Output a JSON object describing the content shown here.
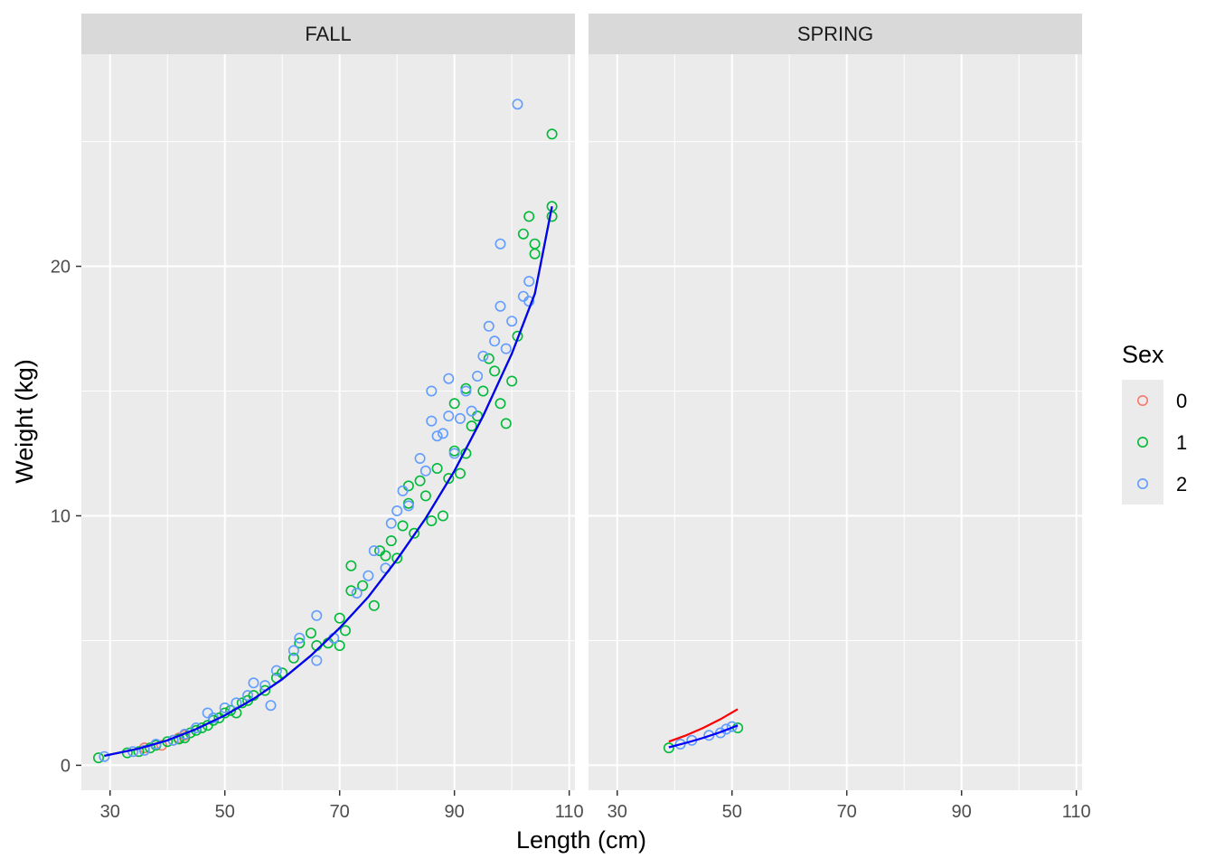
{
  "chart_data": {
    "type": "scatter",
    "xlabel": "Length (cm)",
    "ylabel": "Weight (kg)",
    "xlim": [
      25,
      111
    ],
    "ylim": [
      -1,
      28.5
    ],
    "x_ticks": [
      30,
      50,
      70,
      90,
      110
    ],
    "y_ticks": [
      0,
      10,
      20
    ],
    "grid": true,
    "legend": {
      "title": "Sex",
      "position": "right",
      "entries": [
        {
          "label": "0",
          "color": "#F8766D"
        },
        {
          "label": "1",
          "color": "#00BA38"
        },
        {
          "label": "2",
          "color": "#619CFF"
        }
      ]
    },
    "facets": [
      {
        "label": "FALL",
        "series": [
          {
            "name": "0",
            "color": "#F8766D",
            "points": [
              [
                36,
                0.7
              ],
              [
                39,
                0.8
              ],
              [
                41,
                1.0
              ],
              [
                42,
                1.1
              ],
              [
                43,
                1.2
              ]
            ]
          },
          {
            "name": "1",
            "color": "#00BA38",
            "points": [
              [
                28,
                0.3
              ],
              [
                33,
                0.5
              ],
              [
                35,
                0.55
              ],
              [
                37,
                0.7
              ],
              [
                38,
                0.8
              ],
              [
                40,
                0.95
              ],
              [
                42,
                1.05
              ],
              [
                43,
                1.1
              ],
              [
                44,
                1.3
              ],
              [
                45,
                1.4
              ],
              [
                46,
                1.5
              ],
              [
                47,
                1.6
              ],
              [
                48,
                1.8
              ],
              [
                49,
                1.9
              ],
              [
                50,
                2.1
              ],
              [
                51,
                2.2
              ],
              [
                52,
                2.1
              ],
              [
                53,
                2.5
              ],
              [
                54,
                2.6
              ],
              [
                55,
                2.8
              ],
              [
                57,
                3.0
              ],
              [
                59,
                3.5
              ],
              [
                60,
                3.7
              ],
              [
                62,
                4.3
              ],
              [
                63,
                4.9
              ],
              [
                65,
                5.3
              ],
              [
                66,
                4.8
              ],
              [
                68,
                4.9
              ],
              [
                70,
                4.8
              ],
              [
                70,
                5.9
              ],
              [
                71,
                5.4
              ],
              [
                72,
                7.0
              ],
              [
                72,
                8.0
              ],
              [
                74,
                7.2
              ],
              [
                76,
                6.4
              ],
              [
                77,
                8.6
              ],
              [
                78,
                8.4
              ],
              [
                79,
                9.0
              ],
              [
                80,
                8.3
              ],
              [
                81,
                9.6
              ],
              [
                82,
                10.5
              ],
              [
                82,
                11.2
              ],
              [
                83,
                9.3
              ],
              [
                84,
                11.4
              ],
              [
                85,
                10.8
              ],
              [
                86,
                9.8
              ],
              [
                87,
                11.9
              ],
              [
                88,
                10.0
              ],
              [
                89,
                11.5
              ],
              [
                90,
                12.6
              ],
              [
                90,
                14.5
              ],
              [
                91,
                11.7
              ],
              [
                92,
                12.5
              ],
              [
                92,
                15.1
              ],
              [
                93,
                13.6
              ],
              [
                94,
                14.0
              ],
              [
                95,
                15.0
              ],
              [
                96,
                16.3
              ],
              [
                97,
                15.8
              ],
              [
                98,
                14.5
              ],
              [
                99,
                13.7
              ],
              [
                100,
                15.4
              ],
              [
                101,
                17.2
              ],
              [
                102,
                21.3
              ],
              [
                103,
                22.0
              ],
              [
                104,
                20.5
              ],
              [
                104,
                20.9
              ],
              [
                107,
                22.0
              ],
              [
                107,
                22.4
              ],
              [
                107,
                25.3
              ]
            ]
          },
          {
            "name": "2",
            "color": "#619CFF",
            "points": [
              [
                29,
                0.35
              ],
              [
                34,
                0.55
              ],
              [
                36,
                0.6
              ],
              [
                38,
                0.85
              ],
              [
                41,
                1.0
              ],
              [
                43,
                1.25
              ],
              [
                45,
                1.5
              ],
              [
                47,
                2.1
              ],
              [
                48,
                1.9
              ],
              [
                50,
                2.3
              ],
              [
                52,
                2.5
              ],
              [
                54,
                2.8
              ],
              [
                55,
                3.3
              ],
              [
                57,
                3.2
              ],
              [
                58,
                2.4
              ],
              [
                59,
                3.8
              ],
              [
                62,
                4.6
              ],
              [
                63,
                5.1
              ],
              [
                66,
                4.2
              ],
              [
                66,
                6.0
              ],
              [
                69,
                5.1
              ],
              [
                73,
                6.9
              ],
              [
                75,
                7.6
              ],
              [
                76,
                8.6
              ],
              [
                78,
                7.9
              ],
              [
                79,
                9.7
              ],
              [
                80,
                10.2
              ],
              [
                81,
                11.0
              ],
              [
                82,
                10.4
              ],
              [
                84,
                12.3
              ],
              [
                85,
                11.8
              ],
              [
                86,
                13.8
              ],
              [
                86,
                15.0
              ],
              [
                87,
                13.2
              ],
              [
                88,
                13.3
              ],
              [
                89,
                14.0
              ],
              [
                89,
                15.5
              ],
              [
                90,
                12.5
              ],
              [
                91,
                13.9
              ],
              [
                92,
                15.0
              ],
              [
                93,
                14.2
              ],
              [
                94,
                15.6
              ],
              [
                95,
                16.4
              ],
              [
                96,
                17.6
              ],
              [
                97,
                17.0
              ],
              [
                98,
                18.4
              ],
              [
                98,
                20.9
              ],
              [
                99,
                16.7
              ],
              [
                100,
                17.8
              ],
              [
                101,
                26.5
              ],
              [
                102,
                18.8
              ],
              [
                103,
                19.4
              ],
              [
                103,
                18.6
              ]
            ]
          }
        ],
        "fit_lines": [
          {
            "name": "0",
            "color": "#ff0000",
            "points": [
              [
                29,
                0.38
              ],
              [
                35,
                0.67
              ],
              [
                40,
                1.0
              ],
              [
                45,
                1.45
              ],
              [
                50,
                2.0
              ],
              [
                55,
                2.66
              ],
              [
                60,
                3.45
              ],
              [
                65,
                4.4
              ],
              [
                70,
                5.5
              ],
              [
                75,
                6.75
              ],
              [
                80,
                8.25
              ],
              [
                85,
                9.9
              ],
              [
                90,
                11.8
              ],
              [
                95,
                14.0
              ],
              [
                100,
                16.5
              ],
              [
                104,
                18.9
              ],
              [
                107,
                22.4
              ]
            ]
          },
          {
            "name": "1",
            "color": "#00b000",
            "points": [
              [
                29,
                0.38
              ],
              [
                35,
                0.67
              ],
              [
                40,
                1.0
              ],
              [
                45,
                1.45
              ],
              [
                50,
                2.0
              ],
              [
                55,
                2.66
              ],
              [
                60,
                3.45
              ],
              [
                65,
                4.4
              ],
              [
                70,
                5.5
              ],
              [
                75,
                6.75
              ],
              [
                80,
                8.25
              ],
              [
                85,
                9.9
              ],
              [
                90,
                11.8
              ],
              [
                95,
                14.0
              ],
              [
                100,
                16.5
              ],
              [
                104,
                18.9
              ],
              [
                107,
                22.4
              ]
            ]
          },
          {
            "name": "2",
            "color": "#0000ff",
            "points": [
              [
                29,
                0.38
              ],
              [
                35,
                0.67
              ],
              [
                40,
                1.0
              ],
              [
                45,
                1.45
              ],
              [
                50,
                2.0
              ],
              [
                55,
                2.66
              ],
              [
                60,
                3.45
              ],
              [
                65,
                4.4
              ],
              [
                70,
                5.5
              ],
              [
                75,
                6.75
              ],
              [
                80,
                8.25
              ],
              [
                85,
                9.9
              ],
              [
                90,
                11.8
              ],
              [
                95,
                14.0
              ],
              [
                100,
                16.5
              ],
              [
                104,
                18.9
              ],
              [
                107,
                22.4
              ]
            ]
          }
        ]
      },
      {
        "label": "SPRING",
        "series": [
          {
            "name": "0",
            "color": "#F8766D",
            "points": []
          },
          {
            "name": "1",
            "color": "#00BA38",
            "points": [
              [
                39,
                0.7
              ],
              [
                51,
                1.5
              ]
            ]
          },
          {
            "name": "2",
            "color": "#619CFF",
            "points": [
              [
                41,
                0.85
              ],
              [
                43,
                1.0
              ],
              [
                46,
                1.2
              ],
              [
                48,
                1.3
              ],
              [
                49,
                1.45
              ],
              [
                50,
                1.55
              ]
            ]
          }
        ],
        "fit_lines": [
          {
            "name": "0",
            "color": "#ff0000",
            "points": [
              [
                39,
                0.95
              ],
              [
                42,
                1.2
              ],
              [
                45,
                1.5
              ],
              [
                48,
                1.85
              ],
              [
                51,
                2.25
              ]
            ]
          },
          {
            "name": "2",
            "color": "#0000ff",
            "points": [
              [
                39,
                0.72
              ],
              [
                42,
                0.9
              ],
              [
                45,
                1.1
              ],
              [
                48,
                1.33
              ],
              [
                51,
                1.6
              ]
            ]
          }
        ]
      }
    ]
  }
}
